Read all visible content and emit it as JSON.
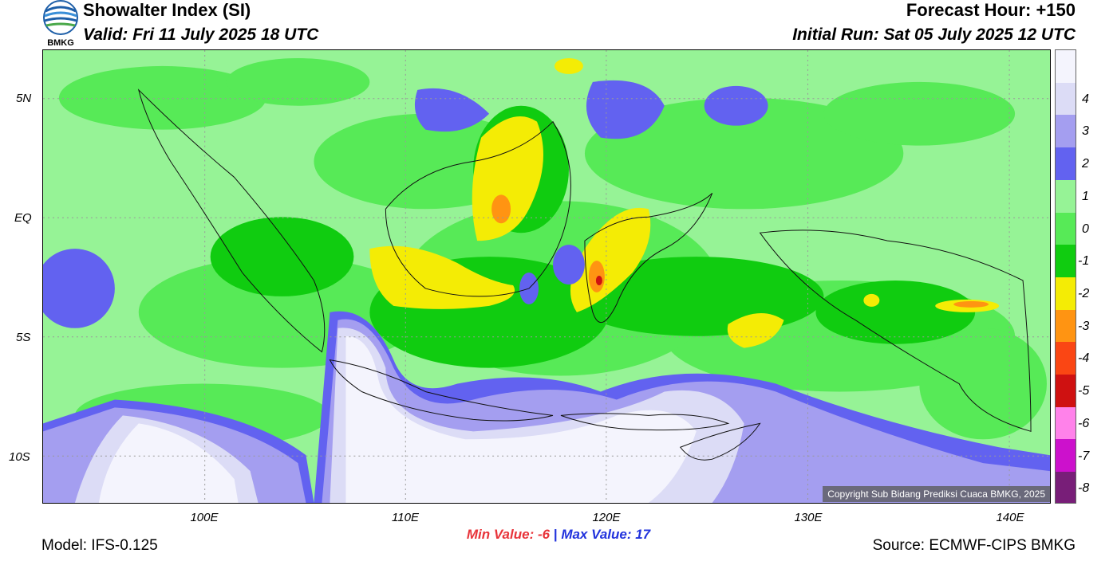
{
  "header": {
    "logo_text": "BMKG",
    "title": "Showalter Index (SI)",
    "valid": "Valid: Fri 11 July 2025 18 UTC",
    "forecast_hour": "Forecast Hour: +150",
    "initial_run": "Initial Run: Sat 05 July 2025 12 UTC"
  },
  "map": {
    "lat_labels": [
      "5N",
      "EQ",
      "5S",
      "10S"
    ],
    "lon_labels": [
      "100E",
      "110E",
      "120E",
      "130E",
      "140E"
    ],
    "copyright": "Copyright Sub Bidang Prediksi Cuaca BMKG, 2025"
  },
  "colorbar": {
    "labels": [
      "4",
      "3",
      "2",
      "1",
      "0",
      "-1",
      "-2",
      "-3",
      "-4",
      "-5",
      "-6",
      "-7",
      "-8"
    ],
    "colors": [
      "#f4f4fd",
      "#dcdcf6",
      "#a49ef0",
      "#6262f0",
      "#96f396",
      "#57ea57",
      "#10cc10",
      "#f4ec05",
      "#ff9412",
      "#fa4614",
      "#cf1111",
      "#ff82ea",
      "#cc11cc",
      "#781e78"
    ]
  },
  "footer": {
    "min_label": "Min Value:  -6",
    "max_label": "Max Value:  17",
    "separator": "|",
    "model": "Model: IFS-0.125",
    "source": "Source: ECMWF-CIPS BMKG"
  }
}
